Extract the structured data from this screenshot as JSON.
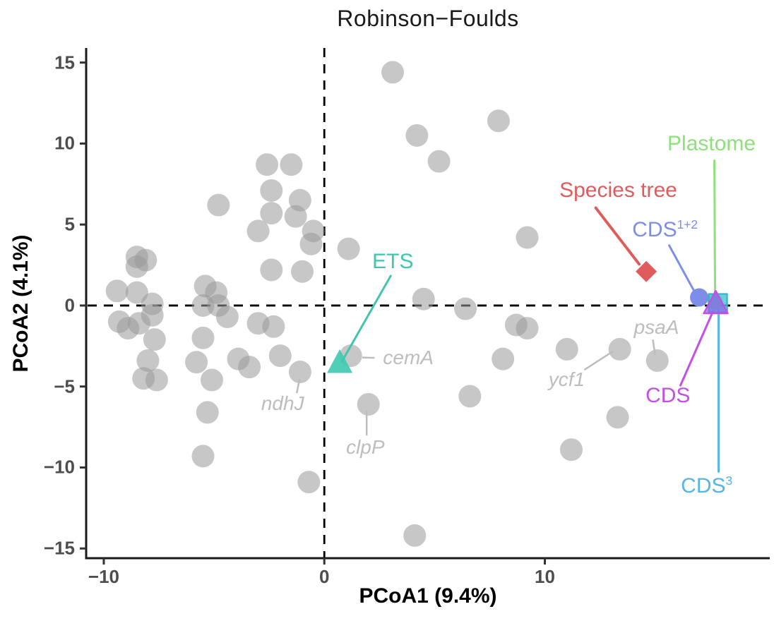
{
  "title": "Robinson−Foulds",
  "axes": {
    "x": {
      "label": "PCoA1 (9.4%)",
      "ticks": [
        -10,
        0,
        10
      ]
    },
    "y": {
      "label": "PCoA2 (4.1%)",
      "ticks": [
        15,
        10,
        5,
        0,
        -5,
        -10,
        -15
      ]
    }
  },
  "chart_data": {
    "type": "scatter",
    "title": "Robinson−Foulds",
    "xlabel": "PCoA1 (9.4%)",
    "ylabel": "PCoA2 (4.1%)",
    "xlim": [
      -10.8,
      20.2
    ],
    "ylim": [
      -15.6,
      15.9
    ],
    "x_ticks": [
      -10,
      0,
      10
    ],
    "y_ticks": [
      15,
      10,
      5,
      0,
      -5,
      -10,
      -15
    ],
    "grid": false,
    "reference_lines": {
      "x": 0,
      "y": 0,
      "style": "dashed",
      "color": "#000000"
    },
    "colors": {
      "gene_trees": "#999999",
      "species_tree": "#e05c5c",
      "plastome": "#8de07a",
      "cds_1_2": "#7d8ee8",
      "cds_3_marker": "#45c3d2",
      "cds_3_label": "#56b4e9",
      "cds": "#c44fe8",
      "ets": "#3dc9b0",
      "gene_label_gray": "#bdbdbd"
    },
    "series": [
      {
        "name": "gene trees",
        "marker": "circle",
        "color": "#999999",
        "opacity": 0.55,
        "size": 16,
        "points": [
          [
            3.1,
            14.4
          ],
          [
            4.2,
            10.5
          ],
          [
            5.2,
            8.9
          ],
          [
            7.9,
            11.4
          ],
          [
            -2.6,
            8.7
          ],
          [
            -1.5,
            8.7
          ],
          [
            -2.4,
            7.1
          ],
          [
            -1.1,
            6.5
          ],
          [
            -4.8,
            6.2
          ],
          [
            -2.4,
            5.7
          ],
          [
            -1.3,
            5.5
          ],
          [
            -3.0,
            4.6
          ],
          [
            -0.5,
            4.6
          ],
          [
            -0.6,
            3.8
          ],
          [
            9.2,
            4.2
          ],
          [
            -8.5,
            3.0
          ],
          [
            -8.1,
            2.8
          ],
          [
            -8.5,
            2.4
          ],
          [
            1.1,
            3.5
          ],
          [
            -2.4,
            2.2
          ],
          [
            -1.0,
            2.1
          ],
          [
            -9.4,
            0.9
          ],
          [
            -8.5,
            0.8
          ],
          [
            -7.8,
            0.1
          ],
          [
            -7.8,
            -0.6
          ],
          [
            -9.3,
            -1.0
          ],
          [
            -8.9,
            -1.4
          ],
          [
            -8.4,
            -1.1
          ],
          [
            -5.4,
            1.2
          ],
          [
            -4.9,
            0.8
          ],
          [
            -5.5,
            0.0
          ],
          [
            -4.8,
            0.0
          ],
          [
            -4.4,
            -0.7
          ],
          [
            -5.5,
            -2.0
          ],
          [
            4.5,
            0.4
          ],
          [
            6.4,
            -0.2
          ],
          [
            -7.7,
            -2.1
          ],
          [
            -8.0,
            -3.4
          ],
          [
            -8.2,
            -4.5
          ],
          [
            -7.6,
            -4.6
          ],
          [
            -5.8,
            -3.5
          ],
          [
            -5.1,
            -4.6
          ],
          [
            -5.3,
            -6.6
          ],
          [
            -5.5,
            -9.3
          ],
          [
            -3.9,
            -3.3
          ],
          [
            -3.4,
            -3.8
          ],
          [
            -3.0,
            -1.1
          ],
          [
            -2.3,
            -1.3
          ],
          [
            -2.0,
            -3.1
          ],
          [
            -0.7,
            -10.9
          ],
          [
            4.1,
            -14.2
          ],
          [
            8.7,
            -1.2
          ],
          [
            9.2,
            -1.4
          ],
          [
            11.0,
            -2.7
          ],
          [
            8.1,
            -3.3
          ],
          [
            6.6,
            -5.6
          ],
          [
            13.3,
            -6.9
          ],
          [
            11.2,
            -8.9
          ],
          [
            -1.1,
            -4.1
          ],
          [
            1.2,
            -3.1
          ],
          [
            2.0,
            -6.1
          ],
          [
            13.4,
            -2.7
          ],
          [
            15.1,
            -3.4
          ]
        ]
      },
      {
        "name": "Species tree",
        "marker": "diamond",
        "color": "#e05c5c",
        "opacity": 1,
        "size": 15,
        "points": [
          [
            14.6,
            2.1
          ]
        ]
      },
      {
        "name": "Plastome",
        "marker": "circle",
        "color": "#8de07a",
        "opacity": 1,
        "size": 11,
        "points": [
          [
            17.72,
            0.25
          ]
        ]
      },
      {
        "name": "CDS1+2",
        "marker": "circle",
        "color": "#7d8ee8",
        "opacity": 1,
        "size": 13,
        "points": [
          [
            17.0,
            0.5
          ]
        ]
      },
      {
        "name": "CDS3",
        "marker": "square",
        "color": "#45c3d2",
        "stroke": "#29b3c4",
        "opacity": 0.8,
        "size": 26,
        "points": [
          [
            17.85,
            0.15
          ]
        ]
      },
      {
        "name": "CDS",
        "marker": "triangle",
        "color": "#9263e6",
        "stroke": "#c44fe8",
        "opacity": 0.72,
        "size": 17,
        "points": [
          [
            17.75,
            0.05
          ]
        ]
      },
      {
        "name": "ETS",
        "marker": "triangle",
        "color": "#3dc9b0",
        "opacity": 0.9,
        "size": 18,
        "points": [
          [
            0.7,
            -3.6
          ]
        ]
      }
    ],
    "annotations": [
      {
        "id": "plastome",
        "text": "Plastome",
        "sup": "",
        "color": "#8de07a",
        "x": 17.56,
        "y": 9.96,
        "leader": [
          [
            17.69,
            8.95
          ],
          [
            17.72,
            0.4
          ]
        ],
        "leader_width": 3
      },
      {
        "id": "species-tree",
        "text": "Species tree",
        "sup": "",
        "color": "#e05c5c",
        "x": 13.33,
        "y": 7.12,
        "leader": [
          [
            12.31,
            6.03
          ],
          [
            14.28,
            2.55
          ]
        ],
        "leader_width": 4
      },
      {
        "id": "cds-1-2",
        "text": "CDS",
        "sup": "1+2",
        "color": "#7d8ee8",
        "x": 15.45,
        "y": 4.67,
        "leader": [
          [
            15.64,
            3.71
          ],
          [
            16.76,
            0.92
          ]
        ],
        "leader_width": 3
      },
      {
        "id": "ets",
        "text": "ETS",
        "sup": "",
        "color": "#3fc6ae",
        "x": 3.11,
        "y": 2.71,
        "leader": [
          [
            3.01,
            1.83
          ],
          [
            0.8,
            -3.45
          ]
        ],
        "leader_width": 3
      },
      {
        "id": "cds",
        "text": "CDS",
        "sup": "",
        "color": "#c44fe8",
        "x": 15.58,
        "y": -5.59,
        "leader": [
          [
            16.15,
            -4.93
          ],
          [
            17.63,
            -0.35
          ]
        ],
        "leader_width": 3
      },
      {
        "id": "cds-3",
        "text": "CDS",
        "sup": "3",
        "color": "#56b4e9",
        "x": 17.34,
        "y": -11.14,
        "leader": [
          [
            17.88,
            -10.26
          ],
          [
            17.88,
            -0.22
          ]
        ],
        "leader_width": 3
      }
    ],
    "gene_labels": [
      {
        "text": "cemA",
        "x": 3.81,
        "y": -3.23,
        "leader": [
          [
            2.28,
            -3.23
          ],
          [
            1.72,
            -3.21
          ]
        ]
      },
      {
        "text": "ndhJ",
        "x": -1.89,
        "y": -6.07,
        "leader": [
          [
            -1.25,
            -5.41
          ],
          [
            -1.12,
            -4.54
          ]
        ]
      },
      {
        "text": "clpP",
        "x": 1.86,
        "y": -8.78,
        "leader": [
          [
            1.92,
            -8.03
          ],
          [
            1.92,
            -6.48
          ]
        ]
      },
      {
        "text": "ycf1",
        "x": 10.99,
        "y": -4.59,
        "leader": [
          [
            11.79,
            -3.97
          ],
          [
            13.1,
            -2.82
          ]
        ]
      },
      {
        "text": "psaA",
        "x": 15.06,
        "y": -1.35,
        "leader": [
          [
            14.9,
            -2.1
          ],
          [
            15.0,
            -3.06
          ]
        ]
      }
    ]
  }
}
